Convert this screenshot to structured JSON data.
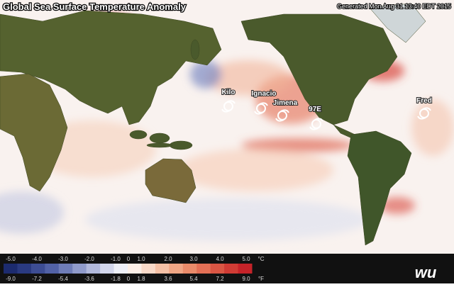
{
  "header": {
    "title": "Global Sea Surface Temperature Anomaly",
    "generated": "Generated Mon Aug 31 13:40 EDT 2015"
  },
  "storms": [
    {
      "label": "Kilo"
    },
    {
      "label": "Ignacio"
    },
    {
      "label": "Jimena"
    },
    {
      "label": "97E"
    },
    {
      "label": "Fred"
    }
  ],
  "legend": {
    "colors": [
      "#1c2b6e",
      "#2a3a80",
      "#3d4d93",
      "#5262a6",
      "#6f7db8",
      "#909bcb",
      "#b2b9dc",
      "#d3d7ec",
      "#eef0f8",
      "#fcefe7",
      "#f9dac9",
      "#f5c1a6",
      "#f0a685",
      "#ea8b6a",
      "#e37056",
      "#da5644",
      "#d03c35",
      "#c52329"
    ],
    "celsius": [
      "-5.0",
      "-4.0",
      "-3.0",
      "-2.0",
      "-1.0",
      "0",
      "1.0",
      "2.0",
      "3.0",
      "4.0",
      "5.0"
    ],
    "celsius_unit": "°C",
    "fahrenheit": [
      "-9.0",
      "-7.2",
      "-5.4",
      "-3.6",
      "-1.8",
      "0",
      "1.8",
      "3.6",
      "5.4",
      "7.2",
      "9.0"
    ],
    "fahrenheit_unit": "°F"
  },
  "logo": "wu"
}
